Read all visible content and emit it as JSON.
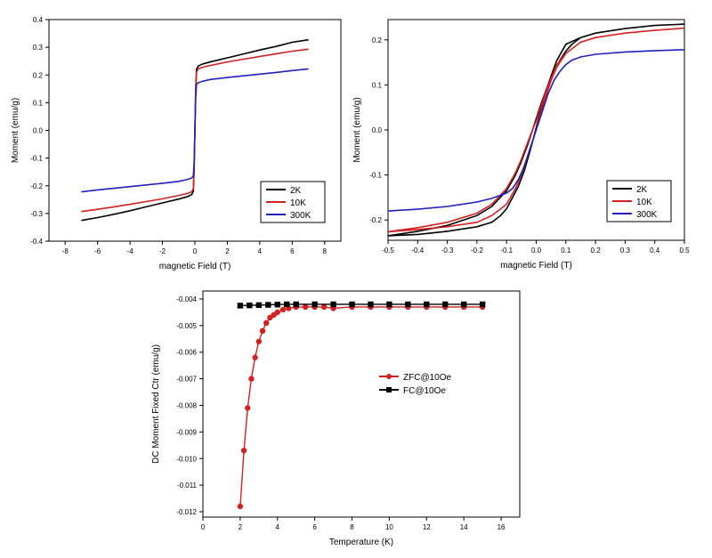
{
  "chart_data": [
    {
      "type": "line",
      "xlabel": "magnetic Field (T)",
      "ylabel": "Moment (emu/g)",
      "xlim": [
        -9,
        9
      ],
      "ylim": [
        -0.4,
        0.4
      ],
      "xticks": [
        -8,
        -6,
        -4,
        -2,
        0,
        2,
        4,
        6,
        8
      ],
      "yticks": [
        -0.4,
        -0.3,
        -0.2,
        -0.1,
        0.0,
        0.1,
        0.2,
        0.3,
        0.4
      ],
      "xtick_labels": [
        "-8",
        "-6",
        "-4",
        "-2",
        "0",
        "2",
        "4",
        "6",
        "8"
      ],
      "ytick_labels": [
        "-0.4",
        "-0.3",
        "-0.2",
        "-0.1",
        "0.0",
        "0.1",
        "0.2",
        "0.3",
        "0.4"
      ],
      "legend_position": "bottom-right",
      "series": [
        {
          "name": "2K",
          "color": "#000000",
          "x": [
            -7,
            -6,
            -5,
            -4,
            -3,
            -2,
            -1,
            -0.5,
            -0.2,
            -0.1,
            -0.05,
            0,
            0.05,
            0.1,
            0.2,
            0.5,
            1,
            2,
            3,
            4,
            5,
            6,
            7
          ],
          "y": [
            -0.325,
            -0.315,
            -0.303,
            -0.29,
            -0.276,
            -0.262,
            -0.248,
            -0.24,
            -0.232,
            -0.22,
            -0.15,
            0.0,
            0.15,
            0.22,
            0.232,
            0.24,
            0.248,
            0.262,
            0.276,
            0.29,
            0.303,
            0.318,
            0.327
          ]
        },
        {
          "name": "10K",
          "color": "#d42020",
          "x": [
            -7,
            -6,
            -5,
            -4,
            -3,
            -2,
            -1,
            -0.5,
            -0.2,
            -0.1,
            -0.05,
            0,
            0.05,
            0.1,
            0.2,
            0.5,
            1,
            2,
            3,
            4,
            5,
            6,
            7
          ],
          "y": [
            -0.293,
            -0.285,
            -0.276,
            -0.267,
            -0.257,
            -0.247,
            -0.235,
            -0.228,
            -0.222,
            -0.21,
            -0.14,
            0.0,
            0.14,
            0.21,
            0.222,
            0.228,
            0.235,
            0.247,
            0.257,
            0.267,
            0.276,
            0.286,
            0.293
          ]
        },
        {
          "name": "300K",
          "color": "#2020c0",
          "x": [
            -7,
            -6,
            -5,
            -4,
            -3,
            -2,
            -1,
            -0.5,
            -0.2,
            -0.1,
            -0.05,
            0,
            0.05,
            0.1,
            0.2,
            0.5,
            1,
            2,
            3,
            4,
            5,
            6,
            7
          ],
          "y": [
            -0.222,
            -0.215,
            -0.209,
            -0.203,
            -0.197,
            -0.191,
            -0.184,
            -0.178,
            -0.172,
            -0.165,
            -0.12,
            0.0,
            0.12,
            0.165,
            0.172,
            0.178,
            0.184,
            0.191,
            0.197,
            0.203,
            0.209,
            0.216,
            0.222
          ]
        }
      ]
    },
    {
      "type": "line",
      "xlabel": "magnetic Field (T)",
      "ylabel": "Moment (emu/g)",
      "xlim": [
        -0.5,
        0.5
      ],
      "ylim": [
        -0.245,
        0.245
      ],
      "xticks": [
        -0.5,
        -0.4,
        -0.3,
        -0.2,
        -0.1,
        0.0,
        0.1,
        0.2,
        0.3,
        0.4,
        0.5
      ],
      "yticks": [
        -0.2,
        -0.1,
        0.0,
        0.1,
        0.2
      ],
      "xtick_labels": [
        "-0.5",
        "-0.4",
        "-0.3",
        "-0.2",
        "-0.1",
        "0.0",
        "0.1",
        "0.2",
        "0.3",
        "0.4",
        "0.5"
      ],
      "ytick_labels": [
        "-0.2",
        "-0.1",
        "0.0",
        "0.1",
        "0.2"
      ],
      "legend_position": "bottom-right",
      "series": [
        {
          "name": "2K",
          "color": "#000000",
          "x": [
            -0.5,
            -0.4,
            -0.3,
            -0.2,
            -0.15,
            -0.1,
            -0.07,
            -0.05,
            -0.03,
            -0.01,
            0.0,
            0.01,
            0.02,
            0.04,
            0.06,
            0.08,
            0.1,
            0.12,
            0.15,
            0.2,
            0.3,
            0.4,
            0.5,
            0.4,
            0.3,
            0.2,
            0.15,
            0.1,
            0.07,
            0.05,
            0.03,
            0.01,
            0.0,
            -0.01,
            -0.02,
            -0.04,
            -0.06,
            -0.08,
            -0.1,
            -0.12,
            -0.15,
            -0.2,
            -0.3,
            -0.4,
            -0.5
          ],
          "y": [
            -0.235,
            -0.225,
            -0.212,
            -0.19,
            -0.17,
            -0.135,
            -0.1,
            -0.07,
            -0.035,
            0.005,
            0.025,
            0.045,
            0.065,
            0.1,
            0.13,
            0.155,
            0.175,
            0.19,
            0.205,
            0.215,
            0.225,
            0.232,
            0.235,
            0.232,
            0.225,
            0.215,
            0.205,
            0.19,
            0.155,
            0.12,
            0.08,
            0.03,
            0.005,
            -0.02,
            -0.045,
            -0.09,
            -0.125,
            -0.15,
            -0.175,
            -0.19,
            -0.205,
            -0.215,
            -0.225,
            -0.232,
            -0.235
          ]
        },
        {
          "name": "10K",
          "color": "#d42020",
          "x": [
            -0.5,
            -0.4,
            -0.3,
            -0.2,
            -0.15,
            -0.1,
            -0.07,
            -0.05,
            -0.03,
            -0.01,
            0.0,
            0.01,
            0.03,
            0.05,
            0.07,
            0.1,
            0.15,
            0.2,
            0.3,
            0.4,
            0.5,
            0.4,
            0.3,
            0.2,
            0.15,
            0.1,
            0.07,
            0.05,
            0.03,
            0.01,
            0.0,
            -0.01,
            -0.03,
            -0.05,
            -0.07,
            -0.1,
            -0.15,
            -0.2,
            -0.3,
            -0.4,
            -0.5
          ],
          "y": [
            -0.226,
            -0.217,
            -0.205,
            -0.185,
            -0.165,
            -0.13,
            -0.095,
            -0.065,
            -0.03,
            0.005,
            0.02,
            0.04,
            0.08,
            0.115,
            0.145,
            0.17,
            0.195,
            0.205,
            0.215,
            0.221,
            0.226,
            0.221,
            0.215,
            0.205,
            0.195,
            0.17,
            0.14,
            0.11,
            0.07,
            0.025,
            0.0,
            -0.02,
            -0.06,
            -0.1,
            -0.13,
            -0.165,
            -0.19,
            -0.205,
            -0.215,
            -0.221,
            -0.226
          ]
        },
        {
          "name": "300K",
          "color": "#2020c0",
          "x": [
            -0.5,
            -0.4,
            -0.3,
            -0.2,
            -0.15,
            -0.1,
            -0.08,
            -0.06,
            -0.04,
            -0.02,
            0.0,
            0.02,
            0.04,
            0.06,
            0.08,
            0.1,
            0.12,
            0.15,
            0.2,
            0.3,
            0.4,
            0.5
          ],
          "y": [
            -0.18,
            -0.176,
            -0.17,
            -0.16,
            -0.152,
            -0.14,
            -0.13,
            -0.11,
            -0.08,
            -0.04,
            0.0,
            0.04,
            0.08,
            0.11,
            0.13,
            0.145,
            0.155,
            0.162,
            0.168,
            0.173,
            0.176,
            0.178
          ]
        }
      ]
    },
    {
      "type": "line",
      "xlabel": "Temperature (K)",
      "ylabel": "DC Moment Fixed Ctr (emu/g)",
      "xlim": [
        0,
        17
      ],
      "ylim": [
        -0.0122,
        -0.0037
      ],
      "xticks": [
        0,
        2,
        4,
        6,
        8,
        10,
        12,
        14,
        16
      ],
      "yticks": [
        -0.012,
        -0.011,
        -0.01,
        -0.009,
        -0.008,
        -0.007,
        -0.006,
        -0.005,
        -0.004
      ],
      "xtick_labels": [
        "0",
        "2",
        "4",
        "6",
        "8",
        "10",
        "12",
        "14",
        "16"
      ],
      "ytick_labels": [
        "-0.012",
        "-0.011",
        "-0.010",
        "-0.009",
        "-0.008",
        "-0.007",
        "-0.006",
        "-0.005",
        "-0.004"
      ],
      "legend_position": "center-right",
      "series": [
        {
          "name": "ZFC@10Oe",
          "color": "#d42020",
          "marker": "circle",
          "x": [
            2.0,
            2.2,
            2.4,
            2.6,
            2.8,
            3.0,
            3.2,
            3.4,
            3.6,
            3.8,
            4.0,
            4.3,
            4.6,
            5.0,
            5.5,
            6.0,
            6.5,
            7.0,
            8.0,
            9.0,
            10.0,
            11.0,
            12.0,
            13.0,
            14.0,
            15.0
          ],
          "y": [
            -0.0118,
            -0.0097,
            -0.0081,
            -0.007,
            -0.0062,
            -0.0056,
            -0.0052,
            -0.0049,
            -0.0047,
            -0.0046,
            -0.0045,
            -0.0044,
            -0.00435,
            -0.0043,
            -0.0043,
            -0.0043,
            -0.0043,
            -0.00435,
            -0.0043,
            -0.0043,
            -0.0043,
            -0.0043,
            -0.0043,
            -0.0043,
            -0.0043,
            -0.0043
          ]
        },
        {
          "name": "FC@10Oe",
          "color": "#000000",
          "marker": "square",
          "x": [
            2.0,
            2.5,
            3.0,
            3.5,
            4.0,
            4.5,
            5.0,
            6.0,
            7.0,
            8.0,
            9.0,
            10.0,
            11.0,
            12.0,
            13.0,
            14.0,
            15.0
          ],
          "y": [
            -0.00425,
            -0.00424,
            -0.00423,
            -0.00422,
            -0.00421,
            -0.0042,
            -0.0042,
            -0.0042,
            -0.0042,
            -0.0042,
            -0.0042,
            -0.0042,
            -0.0042,
            -0.0042,
            -0.0042,
            -0.0042,
            -0.0042
          ]
        }
      ]
    }
  ]
}
